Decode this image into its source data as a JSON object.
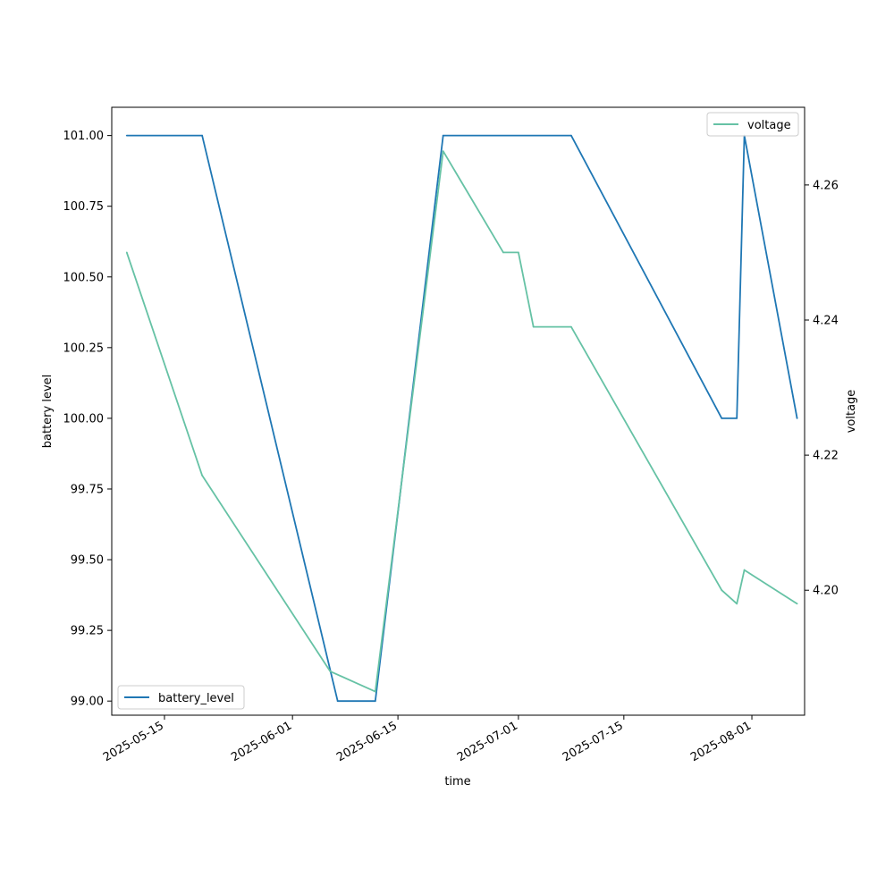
{
  "chart_data": {
    "type": "line",
    "xlabel": "time",
    "ylabel_left": "battery level",
    "ylabel_right": "voltage",
    "x_ticks": [
      "2025-05-15",
      "2025-06-01",
      "2025-06-15",
      "2025-07-01",
      "2025-07-15",
      "2025-08-01"
    ],
    "y_left_ticks": [
      "99.00",
      "99.25",
      "99.50",
      "99.75",
      "100.00",
      "100.25",
      "100.50",
      "100.75",
      "101.00"
    ],
    "y_right_ticks": [
      "4.20",
      "4.22",
      "4.24",
      "4.26"
    ],
    "x_range": [
      "2025-05-08",
      "2025-08-08"
    ],
    "y_left_range": [
      98.95,
      101.1
    ],
    "y_right_range": [
      4.1815,
      4.2715
    ],
    "legend_left": {
      "position": "lower-left",
      "label": "battery_level"
    },
    "legend_right": {
      "position": "upper-right",
      "label": "voltage"
    },
    "series": [
      {
        "name": "battery_level",
        "axis": "left",
        "color": "#1f77b4",
        "x": [
          "2025-05-10",
          "2025-05-20",
          "2025-06-07",
          "2025-06-12",
          "2025-06-21",
          "2025-07-08",
          "2025-07-28",
          "2025-07-30",
          "2025-07-31",
          "2025-08-07"
        ],
        "values": [
          101.0,
          101.0,
          99.0,
          99.0,
          101.0,
          101.0,
          100.0,
          100.0,
          101.0,
          100.0
        ]
      },
      {
        "name": "voltage",
        "axis": "right",
        "color": "#66c2a5",
        "x": [
          "2025-05-10",
          "2025-05-20",
          "2025-06-06",
          "2025-06-12",
          "2025-06-21",
          "2025-06-29",
          "2025-07-01",
          "2025-07-03",
          "2025-07-08",
          "2025-07-28",
          "2025-07-30",
          "2025-07-31",
          "2025-08-07"
        ],
        "values": [
          4.25,
          4.217,
          4.188,
          4.185,
          4.265,
          4.25,
          4.25,
          4.239,
          4.239,
          4.2,
          4.198,
          4.203,
          4.198
        ]
      }
    ]
  }
}
